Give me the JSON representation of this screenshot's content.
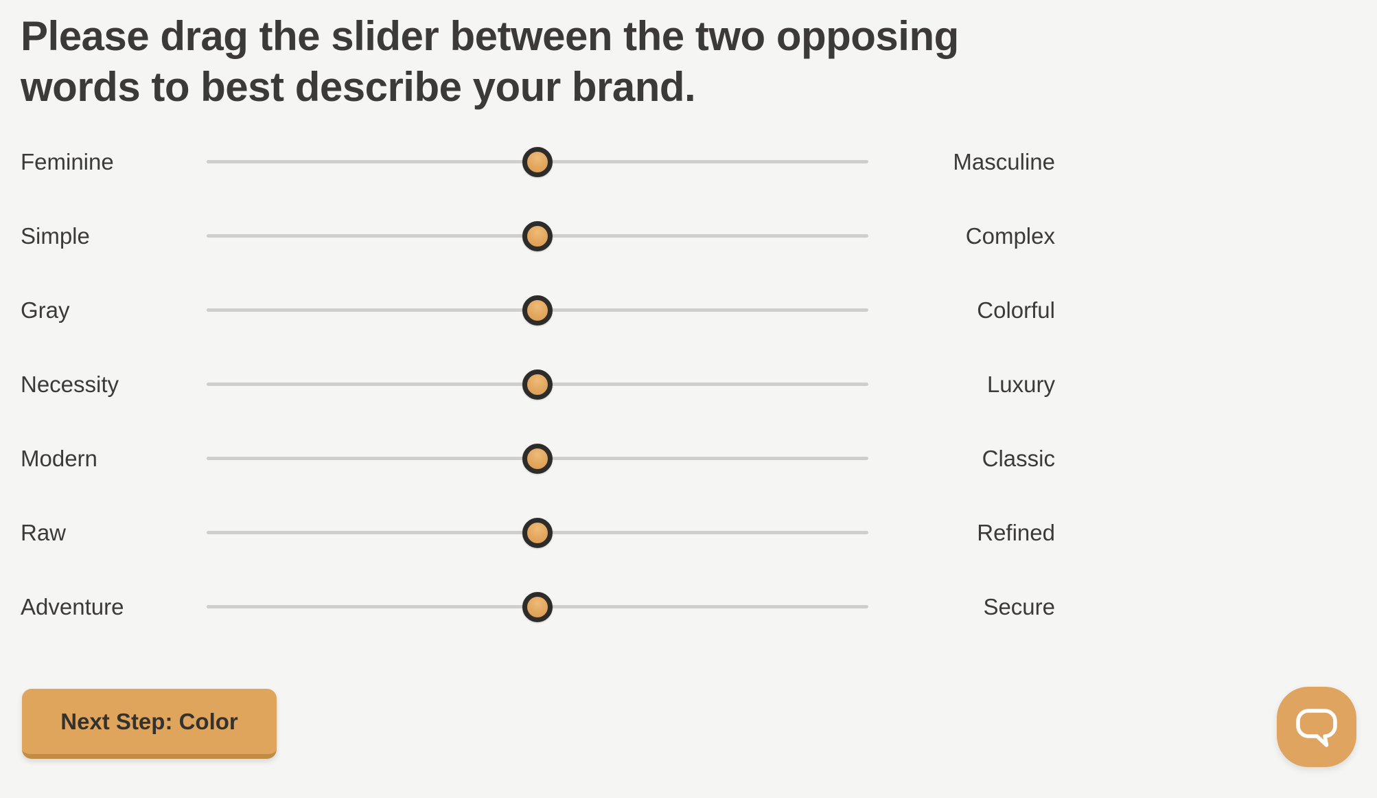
{
  "page": {
    "heading": "Please drag the slider between the two opposing words to best describe your brand."
  },
  "sliders": {
    "rows": [
      {
        "left": "Feminine",
        "right": "Masculine",
        "value": 50
      },
      {
        "left": "Simple",
        "right": "Complex",
        "value": 50
      },
      {
        "left": "Gray",
        "right": "Colorful",
        "value": 50
      },
      {
        "left": "Necessity",
        "right": "Luxury",
        "value": 50
      },
      {
        "left": "Modern",
        "right": "Classic",
        "value": 50
      },
      {
        "left": "Raw",
        "right": "Refined",
        "value": 50
      },
      {
        "left": "Adventure",
        "right": "Secure",
        "value": 50
      }
    ]
  },
  "next_button": {
    "label": "Next Step: Color"
  },
  "chat_widget": {
    "icon": "speech-bubble-icon"
  },
  "theme": {
    "background": "#f5f5f4",
    "text": "#3b3a38",
    "track": "#cfcecd",
    "handle_fill": "#e2a75f",
    "handle_ring": "#2d2c2a",
    "button_bg": "#e0a55c",
    "button_edge": "#c38c45",
    "chat_bg": "#dea460"
  }
}
